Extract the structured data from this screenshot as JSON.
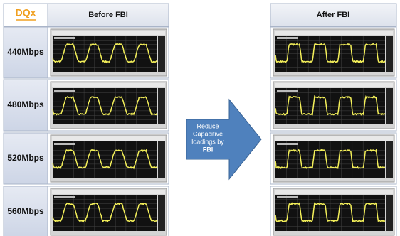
{
  "header": {
    "logo": "DQx",
    "before": "Before FBI",
    "after": "After FBI"
  },
  "rows": [
    "440Mbps",
    "480Mbps",
    "520Mbps",
    "560Mbps"
  ],
  "arrow": {
    "lines": [
      "Reduce",
      "Capacitive",
      "loadings by",
      "FBI"
    ]
  }
}
